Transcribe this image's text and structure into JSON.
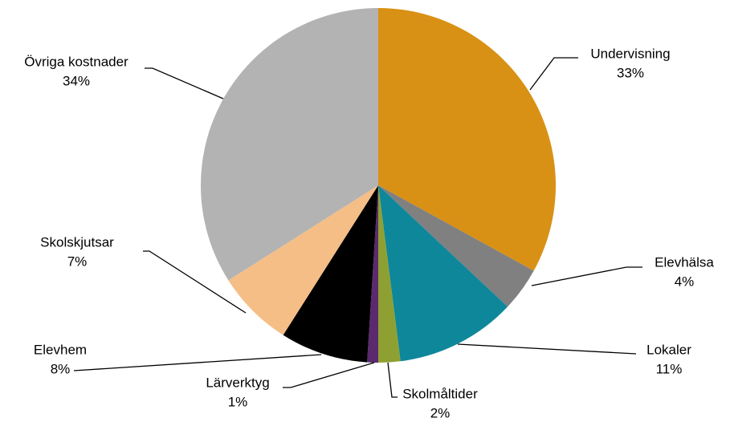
{
  "chart_data": {
    "type": "pie",
    "categories": [
      "Undervisning",
      "Elevhälsa",
      "Lokaler",
      "Skolmåltider",
      "Lärverktyg",
      "Elevhem",
      "Skolskjutsar",
      "Övriga kostnader"
    ],
    "values": [
      33,
      4,
      11,
      2,
      1,
      8,
      7,
      34
    ],
    "value_labels": [
      "33%",
      "4%",
      "11%",
      "2%",
      "1%",
      "8%",
      "7%",
      "34%"
    ],
    "colors": [
      "#D89115",
      "#808080",
      "#0E879B",
      "#8FA032",
      "#5B2A6E",
      "#000000",
      "#F5BE87",
      "#B3B3B3"
    ]
  }
}
